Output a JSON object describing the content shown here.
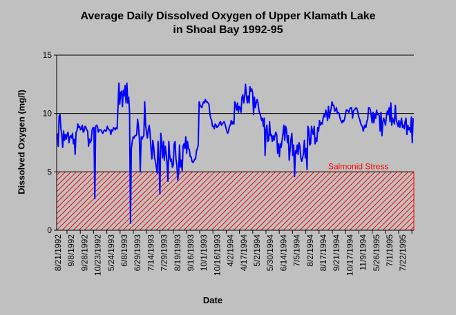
{
  "chart_data": {
    "type": "line",
    "title": "Average Daily Dissolved Oxygen of Upper Klamath Lake",
    "subtitle": "in Shoal Bay 1992-95",
    "xlabel": "Date",
    "ylabel": "Dissolved Oxygen (mg/l)",
    "ylim": [
      0,
      15
    ],
    "yticks": [
      0,
      5,
      10,
      15
    ],
    "grid": "horizontal",
    "x_tick_labels": [
      "8/21/1992",
      "9/8/1992",
      "9/28/1992",
      "10/23/1992",
      "5/24/1993",
      "6/8/1993",
      "6/29/1993",
      "7/14/1993",
      "7/29/1993",
      "8/19/1993",
      "9/16/1993",
      "10/1/1993",
      "10/16/1993",
      "4/2/1994",
      "4/17/1994",
      "5/2/1994",
      "5/30/1994",
      "6/14/1994",
      "7/5/1994",
      "8/2/1994",
      "8/17/1994",
      "9/21/1994",
      "10/17/1994",
      "11/9/1994",
      "5/26/1995",
      "7/1/1995",
      "7/22/1995"
    ],
    "threshold": {
      "label": "Salmonid Stress",
      "range": [
        0,
        5
      ]
    },
    "series": [
      {
        "color": "#0000ff",
        "values": [
          8.3,
          7.2,
          9.8,
          9.9,
          8.7,
          8.2,
          7.1,
          8.5,
          7.7,
          8.2,
          7.8,
          8.2,
          8.4,
          7.5,
          8.0,
          8.1,
          7.9,
          8.3,
          7.4,
          7.8,
          6.5,
          8.4,
          8.5,
          9.1,
          8.8,
          8.9,
          8.6,
          8.7,
          9.0,
          8.4,
          8.5,
          8.9,
          8.8,
          8.6,
          8.5,
          7.2,
          7.8,
          7.5,
          7.7,
          8.6,
          8.8,
          8.8,
          2.7,
          8.9,
          9.0,
          8.9,
          8.4,
          8.6,
          8.6,
          8.6,
          8.4,
          8.3,
          8.5,
          8.6,
          8.5,
          8.5,
          8.9,
          8.7,
          8.6,
          8.6,
          8.2,
          8.6,
          8.5,
          8.8,
          8.7,
          8.6,
          8.8,
          8.7,
          10.5,
          12.6,
          10.8,
          11.8,
          11.9,
          10.6,
          12.0,
          11.5,
          12.4,
          10.9,
          12.6,
          10.9,
          11.4,
          10.1,
          0.6,
          7.0,
          7.6,
          8.0,
          7.9,
          8.1,
          8.1,
          8.2,
          9.5,
          8.9,
          7.8,
          5.0,
          8.0,
          7.8,
          8.0,
          8.1,
          11.0,
          9.0,
          8.4,
          7.9,
          8.6,
          9.0,
          8.3,
          7.0,
          6.1,
          7.7,
          7.2,
          6.2,
          5.9,
          5.4,
          4.9,
          7.6,
          6.0,
          3.1,
          8.3,
          7.5,
          6.2,
          7.6,
          6.0,
          7.2,
          6.6,
          5.7,
          4.2,
          7.6,
          6.4,
          5.9,
          6.1,
          5.4,
          5.6,
          7.4,
          7.6,
          6.1,
          5.6,
          4.3,
          4.9,
          7.3,
          5.4,
          6.0,
          5.1,
          7.2,
          7.4,
          7.0,
          8.0,
          6.6,
          7.6,
          7.0,
          6.9,
          6.3,
          6.3,
          5.9,
          5.8,
          5.9,
          6.1,
          6.1,
          6.8,
          7.0,
          7.3,
          11.0,
          10.7,
          10.6,
          10.5,
          10.8,
          11.0,
          10.9,
          11.2,
          11.0,
          11.0,
          10.9,
          10.8,
          10.0,
          9.6,
          9.4,
          8.9,
          8.9,
          8.7,
          9.1,
          9.0,
          8.8,
          8.9,
          9.0,
          9.2,
          9.3,
          9.0,
          9.1,
          9.2,
          9.3,
          9.1,
          8.8,
          8.5,
          8.3,
          8.5,
          8.9,
          9.0,
          9.4,
          9.1,
          9.3,
          9.1,
          11.0,
          10.7,
          10.3,
          10.9,
          10.1,
          10.6,
          10.5,
          10.1,
          11.4,
          11.6,
          10.9,
          11.4,
          12.5,
          11.6,
          10.9,
          11.5,
          10.9,
          12.3,
          11.9,
          12.1,
          11.8,
          9.9,
          11.4,
          10.5,
          10.9,
          11.2,
          10.9,
          10.3,
          10.0,
          9.8,
          9.4,
          9.6,
          8.9,
          9.6,
          6.4,
          8.6,
          9.0,
          7.6,
          7.7,
          9.3,
          8.1,
          8.2,
          7.6,
          8.1,
          7.7,
          8.1,
          8.4,
          8.2,
          6.6,
          7.4,
          6.3,
          7.4,
          7.1,
          7.7,
          8.3,
          9.0,
          7.7,
          8.9,
          8.6,
          7.5,
          8.1,
          6.0,
          6.9,
          7.8,
          8.3,
          6.4,
          7.3,
          4.6,
          6.8,
          6.6,
          7.3,
          6.5,
          7.5,
          7.2,
          6.2,
          5.9,
          6.2,
          6.6,
          7.7,
          6.2,
          7.0,
          5.2,
          8.9,
          8.6,
          7.3,
          7.4,
          8.9,
          8.5,
          8.2,
          8.9,
          7.4,
          7.9,
          7.6,
          8.8,
          8.5,
          9.4,
          9.0,
          9.2,
          9.1,
          9.6,
          9.9,
          9.7,
          10.3,
          10.0,
          9.4,
          10.6,
          9.6,
          10.1,
          10.4,
          11.0,
          10.7,
          10.7,
          10.2,
          10.3,
          10.5,
          10.0,
          10.1,
          10.0,
          9.6,
          9.4,
          9.2,
          9.4,
          9.3,
          9.5,
          9.9,
          10.3,
          10.3,
          10.2,
          10.1,
          10.4,
          10.5,
          10.5,
          9.6,
          10.2,
          10.3,
          10.4,
          10.5,
          10.4,
          10.1,
          9.7,
          9.5,
          9.2,
          9.0,
          8.9,
          8.5,
          8.8,
          9.0,
          8.8,
          9.3,
          9.5,
          10.5,
          10.5,
          10.3,
          9.8,
          9.2,
          10.1,
          9.2,
          10.0,
          9.6,
          10.3,
          9.9,
          10.0,
          9.8,
          8.5,
          10.1,
          8.1,
          9.3,
          9.6,
          9.3,
          9.0,
          9.8,
          10.2,
          9.9,
          10.5,
          9.3,
          10.9,
          9.0,
          9.6,
          9.4,
          9.1,
          10.7,
          9.4,
          9.2,
          8.9,
          9.4,
          8.8,
          9.2,
          9.6,
          8.8,
          9.0,
          8.7,
          9.3,
          9.6,
          8.2,
          9.0,
          8.6,
          8.8,
          8.4,
          9.7,
          7.5,
          9.6
        ]
      }
    ]
  }
}
